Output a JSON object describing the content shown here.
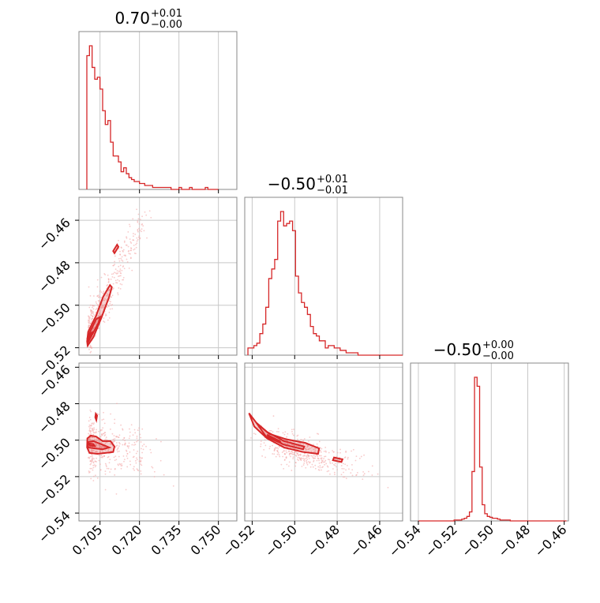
{
  "chart_data": {
    "type": "corner",
    "color": "#d62728",
    "parameters": [
      {
        "title_value": "0.70",
        "title_plus": "+0.01",
        "title_minus": "−0.00",
        "range": [
          0.697,
          0.757
        ],
        "ticks": [
          0.705,
          0.72,
          0.735,
          0.75
        ],
        "tick_labels": [
          "0.705",
          "0.720",
          "0.735",
          "0.750"
        ]
      },
      {
        "title_value": "−0.50",
        "title_plus": "+0.01",
        "title_minus": "−0.01",
        "range": [
          -0.5235,
          -0.4492
        ],
        "ticks": [
          -0.52,
          -0.5,
          -0.48,
          -0.46
        ],
        "tick_labels": [
          "−0.52",
          "−0.50",
          "−0.48",
          "−0.46"
        ]
      },
      {
        "title_value": "−0.50",
        "title_plus": "+0.00",
        "title_minus": "−0.00",
        "range": [
          -0.5443,
          -0.4577
        ],
        "ticks": [
          -0.54,
          -0.52,
          -0.5,
          -0.48,
          -0.46
        ],
        "tick_labels": [
          "−0.54",
          "−0.52",
          "−0.50",
          "−0.48",
          "−0.46"
        ]
      }
    ],
    "histograms": [
      {
        "bins_start": 0.7,
        "bin_width": 0.001,
        "counts": [
          68,
          73,
          62,
          56,
          57,
          51,
          40,
          33,
          35,
          24,
          17,
          17,
          14,
          9,
          11,
          8,
          6,
          5,
          4,
          4,
          3,
          3,
          2,
          2,
          2,
          1,
          1,
          1,
          1,
          1,
          1,
          1,
          0,
          0,
          0,
          1,
          0,
          0,
          0,
          1,
          0,
          0,
          0,
          0,
          0,
          1,
          0,
          0,
          0,
          0
        ]
      },
      {
        "bins_start": -0.522,
        "bin_width": 0.0014,
        "counts": [
          3,
          3,
          4,
          5,
          9,
          13,
          20,
          32,
          36,
          40,
          56,
          60,
          54,
          55,
          56,
          52,
          33,
          26,
          22,
          20,
          17,
          12,
          9,
          8,
          6,
          6,
          3,
          4,
          4,
          3,
          3,
          2,
          2,
          1,
          1,
          1,
          1,
          0,
          0,
          0,
          0,
          0,
          0,
          0,
          0,
          0,
          0,
          0,
          0,
          0,
          0,
          0
        ]
      },
      {
        "bins_start": -0.54,
        "bin_width": 0.0014,
        "counts": [
          0,
          0,
          0,
          0,
          0,
          0,
          0,
          0,
          0,
          0,
          0,
          0,
          0,
          0,
          1,
          1,
          1,
          2,
          3,
          5,
          10,
          55,
          160,
          150,
          60,
          18,
          8,
          5,
          4,
          3,
          3,
          2,
          1,
          1,
          1,
          1,
          0,
          0,
          0,
          0,
          0,
          0,
          0,
          0,
          0,
          0,
          0,
          0,
          0,
          0,
          0,
          0,
          0,
          0,
          0,
          0,
          0,
          0,
          0,
          0,
          0
        ]
      }
    ]
  }
}
